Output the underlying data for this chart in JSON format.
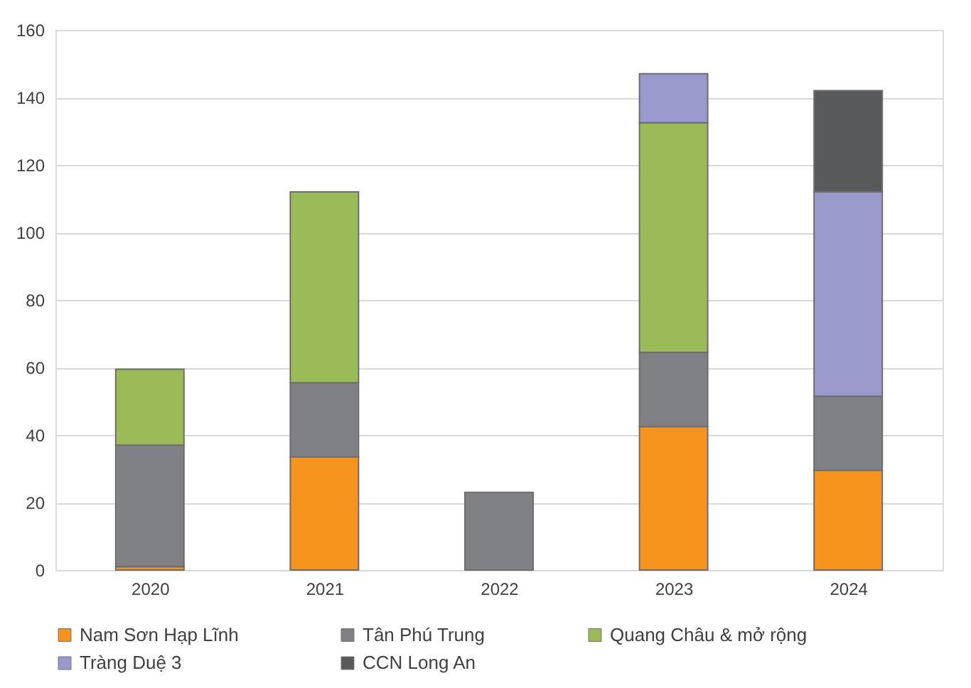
{
  "chart_data": {
    "type": "bar",
    "stacked": true,
    "categories": [
      "2020",
      "2021",
      "2022",
      "2023",
      "2024"
    ],
    "series": [
      {
        "name": "Nam Sơn Hạp Lĩnh",
        "color": "#f7941d",
        "values": [
          1,
          33.5,
          null,
          42.5,
          29.5
        ]
      },
      {
        "name": "Tân Phú Trung",
        "color": "#808184",
        "values": [
          36,
          22,
          23,
          22,
          22
        ]
      },
      {
        "name": "Quang Châu & mở rộng",
        "color": "#9bbb59",
        "values": [
          22.5,
          56.5,
          null,
          68,
          null
        ]
      },
      {
        "name": "Tràng Duệ 3",
        "color": "#9999cc",
        "values": [
          null,
          null,
          null,
          14.5,
          60.5
        ]
      },
      {
        "name": "CCN Long An",
        "color": "#58595b",
        "values": [
          null,
          null,
          null,
          null,
          30
        ]
      }
    ],
    "ylim": [
      0,
      160
    ],
    "yticks": [
      0,
      20,
      40,
      60,
      80,
      100,
      120,
      140,
      160
    ],
    "grid": "y",
    "legend": "bottom"
  }
}
